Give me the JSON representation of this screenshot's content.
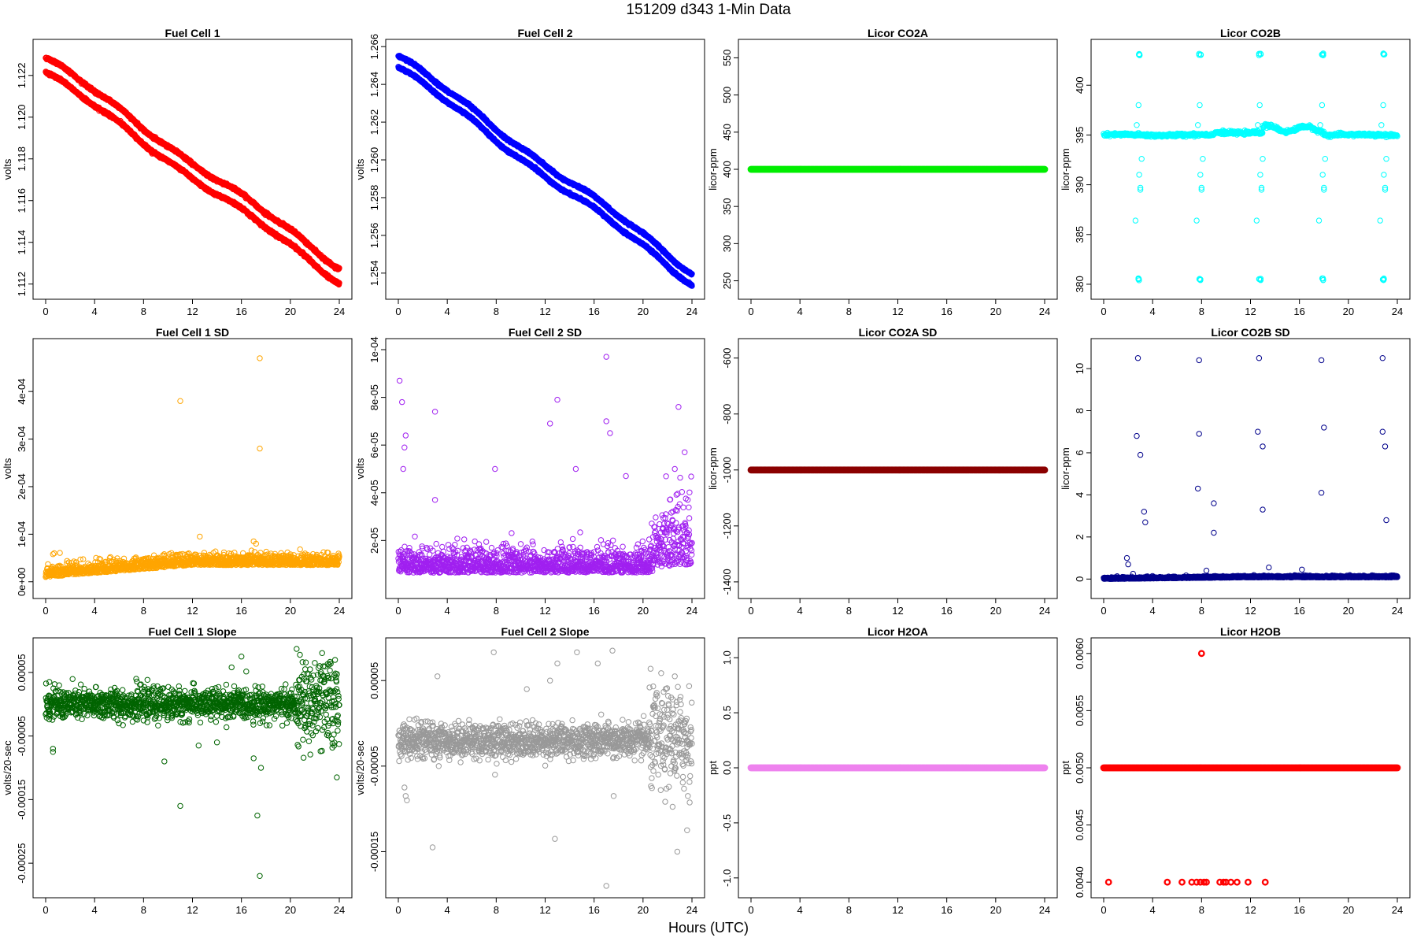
{
  "figure": {
    "title": "151209    d343    1-Min Data",
    "xlabel": "Hours (UTC)"
  },
  "chart_data": [
    {
      "type": "scatter",
      "title": "Fuel Cell 1",
      "ylabel": "volts",
      "color": "#ff0000",
      "xlim": [
        0,
        24
      ],
      "xticks": [
        "0",
        "4",
        "8",
        "12",
        "16",
        "20",
        "24"
      ],
      "ylim": [
        1.1118,
        1.1232
      ],
      "yticks": [
        "1.112",
        "1.114",
        "1.116",
        "1.118",
        "1.120",
        "1.122"
      ],
      "pattern": {
        "kind": "band",
        "start": 1.1225,
        "end": 1.1125,
        "offset": 0.0007
      }
    },
    {
      "type": "scatter",
      "title": "Fuel Cell 2",
      "ylabel": "volts",
      "color": "#0000ff",
      "xlim": [
        0,
        24
      ],
      "xticks": [
        "0",
        "4",
        "8",
        "12",
        "16",
        "20",
        "24"
      ],
      "ylim": [
        1.2532,
        1.2658
      ],
      "yticks": [
        "1.254",
        "1.256",
        "1.258",
        "1.260",
        "1.262",
        "1.264",
        "1.266"
      ],
      "pattern": {
        "kind": "band",
        "start": 1.2652,
        "end": 1.2538,
        "offset": 0.0006
      }
    },
    {
      "type": "scatter",
      "title": "Licor CO2A",
      "ylabel": "licor-ppm",
      "color": "#00ee00",
      "xlim": [
        0,
        24
      ],
      "xticks": [
        "0",
        "4",
        "8",
        "12",
        "16",
        "20",
        "24"
      ],
      "ylim": [
        240,
        560
      ],
      "yticks": [
        "250",
        "300",
        "350",
        "400",
        "450",
        "500",
        "550"
      ],
      "pattern": {
        "kind": "flat",
        "value": 400
      }
    },
    {
      "type": "scatter",
      "title": "Licor CO2B",
      "ylabel": "licor-ppm",
      "color": "#00ffff",
      "xlim": [
        0,
        24
      ],
      "xticks": [
        "0",
        "4",
        "8",
        "12",
        "16",
        "20",
        "24"
      ],
      "ylim": [
        379.6,
        403.5
      ],
      "yticks": [
        "380",
        "385",
        "390",
        "395",
        "400"
      ],
      "pattern": {
        "kind": "co2b",
        "base": 395.0
      }
    },
    {
      "type": "scatter",
      "title": "Fuel Cell 1 SD",
      "ylabel": "volts",
      "color": "#ffa500",
      "xlim": [
        0,
        24
      ],
      "xticks": [
        "0",
        "4",
        "8",
        "12",
        "16",
        "20",
        "24"
      ],
      "ylim": [
        -1.2e-05,
        0.000488
      ],
      "yticks": [
        "0e+00",
        "1e-04",
        "2e-04",
        "3e-04",
        "4e-04"
      ],
      "ytick_values": [
        0,
        0.0001,
        0.0002,
        0.0003,
        0.0004
      ],
      "pattern": {
        "kind": "noise-up",
        "low": 1e-05,
        "high": 3.5e-05
      },
      "outliers": [
        [
          11.0,
          0.00038
        ],
        [
          17.5,
          0.00047
        ],
        [
          17.5,
          0.00028
        ],
        [
          12.6,
          9.5e-05
        ],
        [
          9.7,
          5.5e-05
        ],
        [
          17.0,
          8.5e-05
        ],
        [
          17.2,
          8e-05
        ],
        [
          0.6,
          5.8e-05
        ],
        [
          0.7,
          6e-05
        ]
      ]
    },
    {
      "type": "scatter",
      "title": "Fuel Cell 2 SD",
      "ylabel": "volts",
      "color": "#a020f0",
      "xlim": [
        0,
        24
      ],
      "xticks": [
        "0",
        "4",
        "8",
        "12",
        "16",
        "20",
        "24"
      ],
      "ylim": [
        3e-07,
        0.0001
      ],
      "yticks": [
        "2e-05",
        "4e-05",
        "6e-05",
        "8e-05",
        "1e-04"
      ],
      "ytick_values": [
        2e-05,
        4e-05,
        6e-05,
        8e-05,
        0.0001
      ],
      "pattern": {
        "kind": "noise-tail",
        "low": 5e-06,
        "high": 1.5e-05,
        "tail_start": 20.5,
        "tail_high": 3.5e-05
      },
      "outliers": [
        [
          0.1,
          8.7e-05
        ],
        [
          0.3,
          7.8e-05
        ],
        [
          0.6,
          6.4e-05
        ],
        [
          0.5,
          5.9e-05
        ],
        [
          0.4,
          5e-05
        ],
        [
          3.0,
          7.4e-05
        ],
        [
          3.0,
          3.7e-05
        ],
        [
          7.9,
          5e-05
        ],
        [
          12.4,
          6.9e-05
        ],
        [
          13.0,
          7.9e-05
        ],
        [
          17.0,
          9.7e-05
        ],
        [
          17.0,
          7e-05
        ],
        [
          17.3,
          6.5e-05
        ],
        [
          22.9,
          7.6e-05
        ],
        [
          23.4,
          5.7e-05
        ],
        [
          22.6,
          5e-05
        ],
        [
          14.5,
          5e-05
        ],
        [
          18.6,
          4.7e-05
        ]
      ]
    },
    {
      "type": "scatter",
      "title": "Licor CO2A SD",
      "ylabel": "licor-ppm",
      "color": "#8b0000",
      "xlim": [
        0,
        24
      ],
      "xticks": [
        "0",
        "4",
        "8",
        "12",
        "16",
        "20",
        "24"
      ],
      "ylim": [
        -1420,
        -570
      ],
      "yticks": [
        "-1400",
        "-1200",
        "-1000",
        "-800",
        "-600"
      ],
      "pattern": {
        "kind": "flat",
        "value": -1000
      }
    },
    {
      "type": "scatter",
      "title": "Licor CO2B SD",
      "ylabel": "licor-ppm",
      "color": "#00008b",
      "xlim": [
        0,
        24
      ],
      "xticks": [
        "0",
        "4",
        "8",
        "12",
        "16",
        "20",
        "24"
      ],
      "ylim": [
        -0.4,
        10.9
      ],
      "yticks": [
        "0",
        "2",
        "4",
        "6",
        "8",
        "10"
      ],
      "pattern": {
        "kind": "noise-up",
        "low": 0.0,
        "high": 0.08
      },
      "outliers": [
        [
          2.8,
          10.5
        ],
        [
          7.8,
          10.4
        ],
        [
          12.7,
          10.5
        ],
        [
          17.8,
          10.4
        ],
        [
          22.8,
          10.5
        ],
        [
          2.7,
          6.8
        ],
        [
          3.0,
          5.9
        ],
        [
          7.8,
          6.9
        ],
        [
          12.6,
          7.0
        ],
        [
          13.0,
          6.3
        ],
        [
          18.0,
          7.2
        ],
        [
          22.8,
          7.0
        ],
        [
          23.0,
          6.3
        ],
        [
          3.3,
          3.2
        ],
        [
          3.4,
          2.7
        ],
        [
          7.7,
          4.3
        ],
        [
          9.0,
          3.6
        ],
        [
          9.0,
          2.2
        ],
        [
          13.0,
          3.3
        ],
        [
          17.8,
          4.1
        ],
        [
          23.1,
          2.8
        ],
        [
          1.9,
          1.0
        ],
        [
          2.0,
          0.7
        ],
        [
          8.4,
          0.4
        ],
        [
          13.5,
          0.55
        ],
        [
          16.2,
          0.45
        ],
        [
          2.4,
          0.25
        ]
      ]
    },
    {
      "type": "scatter",
      "title": "Fuel Cell 1 Slope",
      "ylabel": "volts/20-sec",
      "color": "#006400",
      "xlim": [
        0,
        24
      ],
      "xticks": [
        "0",
        "4",
        "8",
        "12",
        "16",
        "20",
        "24"
      ],
      "ylim": [
        -0.000287,
        8.7e-05
      ],
      "yticks": [
        "-0.00025",
        "-0.00015",
        "-0.00005",
        "0.00005"
      ],
      "ytick_values": [
        -0.00025,
        -0.00015,
        -5e-05,
        5e-05
      ],
      "pattern": {
        "kind": "noise-sym",
        "center": 0.0,
        "spread": 1.2e-05,
        "tail_start": 20.5,
        "tail_spread": 3.5e-05
      },
      "outliers": [
        [
          0.3,
          3.5e-05
        ],
        [
          0.6,
          -7e-05
        ],
        [
          0.6,
          -7.5e-05
        ],
        [
          9.7,
          -9e-05
        ],
        [
          11.0,
          -0.00016
        ],
        [
          12.5,
          -6.5e-05
        ],
        [
          14.0,
          -6e-05
        ],
        [
          16.0,
          7.5e-05
        ],
        [
          17.0,
          -8.5e-05
        ],
        [
          17.6,
          -0.0001
        ],
        [
          17.3,
          -0.000175
        ],
        [
          17.5,
          -0.00027
        ],
        [
          23.8,
          -0.000115
        ],
        [
          22.0,
          6.5e-05
        ],
        [
          15.2,
          5.8e-05
        ],
        [
          7.4,
          4e-05
        ]
      ]
    },
    {
      "type": "scatter",
      "title": "Fuel Cell 2 Slope",
      "ylabel": "volts/20-sec",
      "color": "#999999",
      "xlim": [
        0,
        24
      ],
      "xticks": [
        "0",
        "4",
        "8",
        "12",
        "16",
        "20",
        "24"
      ],
      "ylim": [
        -0.000191,
        8.7e-05
      ],
      "yticks": [
        "-0.00015",
        "-0.00005",
        "0.00005"
      ],
      "ytick_values": [
        -0.00015,
        -5e-05,
        5e-05
      ],
      "pattern": {
        "kind": "noise-sym",
        "center": -2e-05,
        "spread": 1e-05,
        "tail_start": 20.5,
        "tail_spread": 3e-05
      },
      "outliers": [
        [
          0.5,
          -7.5e-05
        ],
        [
          0.6,
          -8.5e-05
        ],
        [
          0.7,
          -9e-05
        ],
        [
          3.2,
          5.5e-05
        ],
        [
          3.3,
          -5e-05
        ],
        [
          2.8,
          -0.000145
        ],
        [
          7.8,
          8.3e-05
        ],
        [
          7.9,
          -6e-05
        ],
        [
          12.8,
          -0.000135
        ],
        [
          12.4,
          5e-05
        ],
        [
          13.0,
          7e-05
        ],
        [
          14.6,
          8.3e-05
        ],
        [
          16.3,
          7e-05
        ],
        [
          17.0,
          -0.00019
        ],
        [
          17.5,
          8.5e-05
        ],
        [
          17.6,
          -8.5e-05
        ],
        [
          22.8,
          -0.00015
        ],
        [
          23.6,
          -0.000125
        ],
        [
          22.6,
          5.5e-05
        ],
        [
          10.5,
          4e-05
        ]
      ]
    },
    {
      "type": "scatter",
      "title": "Licor H2OA",
      "ylabel": "ppt",
      "color": "#ee82ee",
      "xlim": [
        0,
        24
      ],
      "xticks": [
        "0",
        "4",
        "8",
        "12",
        "16",
        "20",
        "24"
      ],
      "ylim": [
        -1.08,
        1.08
      ],
      "yticks": [
        "-1.0",
        "-0.5",
        "0.0",
        "0.5",
        "1.0"
      ],
      "pattern": {
        "kind": "flat",
        "value": 0.0
      }
    },
    {
      "type": "scatter",
      "title": "Licor H2OB",
      "ylabel": "ppt",
      "color": "#ff0000",
      "xlim": [
        0,
        24
      ],
      "xticks": [
        "0",
        "4",
        "8",
        "12",
        "16",
        "20",
        "24"
      ],
      "ylim": [
        0.00396,
        0.00604
      ],
      "yticks": [
        "0.0040",
        "0.0045",
        "0.0050",
        "0.0055",
        "0.0060"
      ],
      "ytick_values": [
        0.004,
        0.0045,
        0.005,
        0.0055,
        0.006
      ],
      "pattern": {
        "kind": "flat",
        "value": 0.005
      },
      "outliers": [
        [
          8.0,
          0.006
        ],
        [
          0.4,
          0.004
        ],
        [
          5.2,
          0.004
        ],
        [
          6.4,
          0.004
        ],
        [
          7.2,
          0.004
        ],
        [
          7.6,
          0.004
        ],
        [
          7.9,
          0.004
        ],
        [
          8.2,
          0.004
        ],
        [
          8.4,
          0.004
        ],
        [
          9.5,
          0.004
        ],
        [
          9.8,
          0.004
        ],
        [
          10.0,
          0.004
        ],
        [
          10.4,
          0.004
        ],
        [
          10.9,
          0.004
        ],
        [
          11.8,
          0.004
        ],
        [
          13.2,
          0.004
        ]
      ]
    }
  ]
}
